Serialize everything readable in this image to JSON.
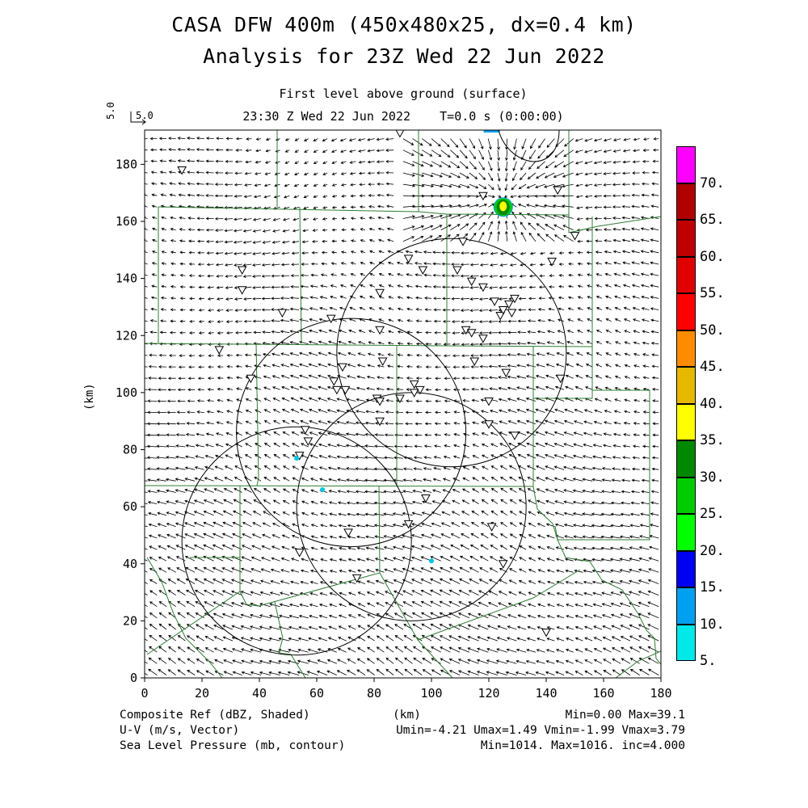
{
  "title": {
    "line1": "CASA DFW 400m (450x480x25, dx=0.4 km)",
    "line2": "Analysis for 23Z Wed 22 Jun 2022"
  },
  "subtitle": {
    "level": "First level above ground (surface)",
    "time": "23:30 Z Wed 22 Jun 2022    T=0.0 s (0:00:00)"
  },
  "ref_vector": {
    "scale_label": "5.0",
    "vertical_label": "5.0"
  },
  "axes": {
    "x_label": "(km)",
    "y_label": "(km)",
    "x_ticks": [
      "0",
      "20",
      "40",
      "60",
      "80",
      "100",
      "120",
      "140",
      "160",
      "180"
    ],
    "y_ticks": [
      "0",
      "20",
      "40",
      "60",
      "80",
      "100",
      "120",
      "140",
      "160",
      "180"
    ]
  },
  "colorbar": {
    "labels": [
      "5.",
      "10.",
      "15.",
      "20.",
      "25.",
      "30.",
      "35.",
      "40.",
      "45.",
      "50.",
      "55.",
      "60.",
      "65.",
      "70."
    ],
    "colors": [
      "#00e8e8",
      "#00a0f0",
      "#0000f0",
      "#00ff00",
      "#00cc00",
      "#008800",
      "#ffff00",
      "#e6b800",
      "#ff8c00",
      "#ff0000",
      "#e00000",
      "#c00000",
      "#b00000",
      "#ff00ff"
    ]
  },
  "footer": {
    "left1": "Composite Ref (dBZ, Shaded)",
    "left2": "U-V (m/s, Vector)",
    "left3": "Sea Level Pressure (mb, contour)",
    "center": "(km)",
    "right1": "Min=0.00 Max=39.1",
    "right2": "Umin=-4.21 Umax=1.49 Vmin=-1.99 Vmax=3.79",
    "right3": "Min=1014. Max=1016. inc=4.000"
  },
  "map_data": {
    "x_range_km": [
      0,
      180
    ],
    "y_range_km": [
      0,
      192
    ],
    "radar_rings": [
      {
        "center_km": [
          107,
          114
        ],
        "radius_km": 40
      },
      {
        "center_km": [
          72,
          86
        ],
        "radius_km": 40
      },
      {
        "center_km": [
          93,
          60
        ],
        "radius_km": 40
      },
      {
        "center_km": [
          53,
          48
        ],
        "radius_km": 40
      }
    ],
    "radar_sites": [
      [
        53,
        77
      ],
      [
        62,
        66
      ],
      [
        100,
        41
      ]
    ],
    "reflectivity_cells": [
      {
        "center_km": [
          125,
          165
        ],
        "max_dbz": 39.1
      },
      {
        "center_km": [
          121,
          190.5
        ],
        "max_dbz": 12
      }
    ],
    "stations": [
      [
        13,
        178
      ],
      [
        34,
        143
      ],
      [
        34,
        136
      ],
      [
        48,
        128
      ],
      [
        26,
        115
      ],
      [
        37,
        105
      ],
      [
        65,
        126
      ],
      [
        82,
        135
      ],
      [
        82,
        122
      ],
      [
        83,
        111
      ],
      [
        69,
        109
      ],
      [
        66,
        104
      ],
      [
        67,
        101
      ],
      [
        70,
        101
      ],
      [
        81,
        98
      ],
      [
        82,
        97
      ],
      [
        82,
        90
      ],
      [
        92,
        147
      ],
      [
        97,
        143
      ],
      [
        111,
        153
      ],
      [
        109,
        143
      ],
      [
        114,
        139
      ],
      [
        118,
        137
      ],
      [
        122,
        132
      ],
      [
        124,
        127
      ],
      [
        125,
        129
      ],
      [
        127,
        131
      ],
      [
        129,
        133
      ],
      [
        128,
        128
      ],
      [
        112,
        122
      ],
      [
        114,
        121
      ],
      [
        118,
        119
      ],
      [
        115,
        111
      ],
      [
        126,
        107
      ],
      [
        94,
        103
      ],
      [
        96,
        101
      ],
      [
        94,
        100
      ],
      [
        89,
        98
      ],
      [
        120,
        97
      ],
      [
        120,
        89
      ],
      [
        129,
        85
      ],
      [
        56,
        87
      ],
      [
        57,
        83
      ],
      [
        54,
        78
      ],
      [
        98,
        63
      ],
      [
        71,
        51
      ],
      [
        92,
        54
      ],
      [
        121,
        53
      ],
      [
        54,
        44
      ],
      [
        74,
        35
      ],
      [
        125,
        40
      ],
      [
        140,
        16
      ],
      [
        118,
        169
      ],
      [
        144,
        171
      ],
      [
        142,
        146
      ],
      [
        145,
        105
      ],
      [
        150,
        155
      ],
      [
        89,
        191
      ]
    ],
    "pressure_contour": "1016 mb closed contour near top center"
  }
}
